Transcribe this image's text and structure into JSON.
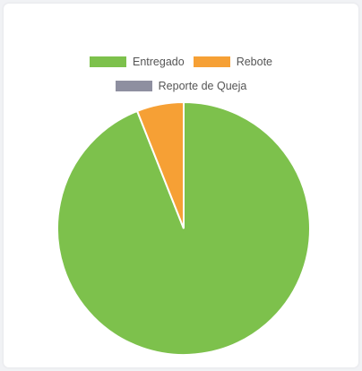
{
  "chart_data": {
    "type": "pie",
    "title": "",
    "legend_position": "top",
    "series": [
      {
        "label": "Entregado",
        "value": 94,
        "color": "#7dc14c"
      },
      {
        "label": "Rebote",
        "value": 6,
        "color": "#f6a035"
      },
      {
        "label": "Reporte de Queja",
        "value": 0,
        "color": "#8e8fa0"
      }
    ]
  }
}
